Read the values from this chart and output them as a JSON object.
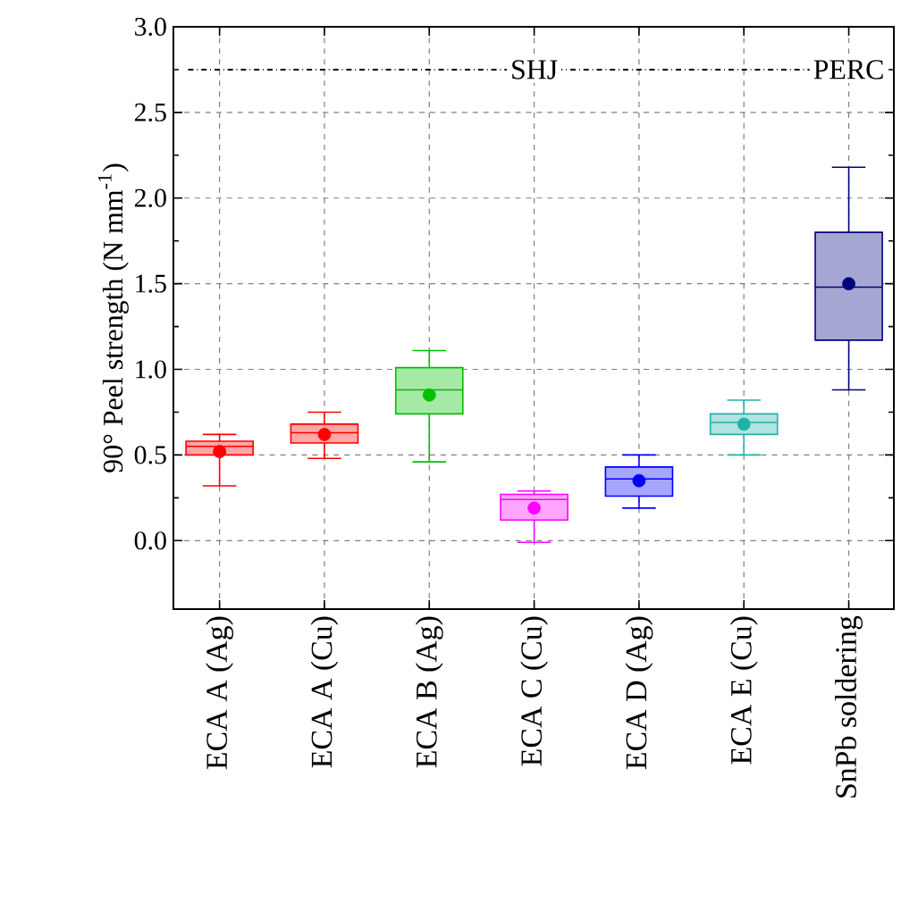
{
  "chart_data": {
    "type": "box",
    "ylabel": "90° Peel strength (N mm$^{-1}$)",
    "categories": [
      "ECA A (Ag)",
      "ECA A (Cu)",
      "ECA B (Ag)",
      "ECA C (Cu)",
      "ECA D (Ag)",
      "ECA E (Cu)",
      "SnPb soldering"
    ],
    "boxes": [
      {
        "low": 0.32,
        "q1": 0.5,
        "median": 0.55,
        "q3": 0.58,
        "high": 0.62,
        "mean": 0.52
      },
      {
        "low": 0.48,
        "q1": 0.57,
        "median": 0.63,
        "q3": 0.68,
        "high": 0.75,
        "mean": 0.62
      },
      {
        "low": 0.46,
        "q1": 0.74,
        "median": 0.88,
        "q3": 1.01,
        "high": 1.11,
        "mean": 0.85
      },
      {
        "low": -0.01,
        "q1": 0.12,
        "median": 0.24,
        "q3": 0.27,
        "high": 0.29,
        "mean": 0.19
      },
      {
        "low": 0.19,
        "q1": 0.26,
        "median": 0.36,
        "q3": 0.43,
        "high": 0.5,
        "mean": 0.35
      },
      {
        "low": 0.5,
        "q1": 0.62,
        "median": 0.69,
        "q3": 0.74,
        "high": 0.82,
        "mean": 0.68
      },
      {
        "low": 0.88,
        "q1": 1.17,
        "median": 1.48,
        "q3": 1.8,
        "high": 2.18,
        "mean": 1.5
      }
    ],
    "colors": [
      "#ff0000",
      "#ff0000",
      "#00c000",
      "#ff00ff",
      "#0000ff",
      "#20b2aa",
      "#000080"
    ],
    "ylim": [
      -0.4,
      3.0
    ],
    "yticks": [
      {
        "value": 0,
        "label": "0.0"
      },
      0.5,
      {
        "value": 1,
        "label": "1.0"
      },
      1.5,
      {
        "value": 2,
        "label": "2.0"
      },
      2.5,
      {
        "value": 3,
        "label": "3.0"
      }
    ],
    "grid": true,
    "marker": "circle",
    "ref_lines": [
      {
        "axis": "y",
        "value": 2.75,
        "line_style": "dashdot",
        "color": "#000000"
      }
    ],
    "annotations": [
      {
        "text": "SHJ",
        "x": "ECA C (Cu)",
        "y": 2.75
      },
      {
        "text": "PERC",
        "x": "SnPb soldering",
        "y": 2.75
      }
    ]
  }
}
